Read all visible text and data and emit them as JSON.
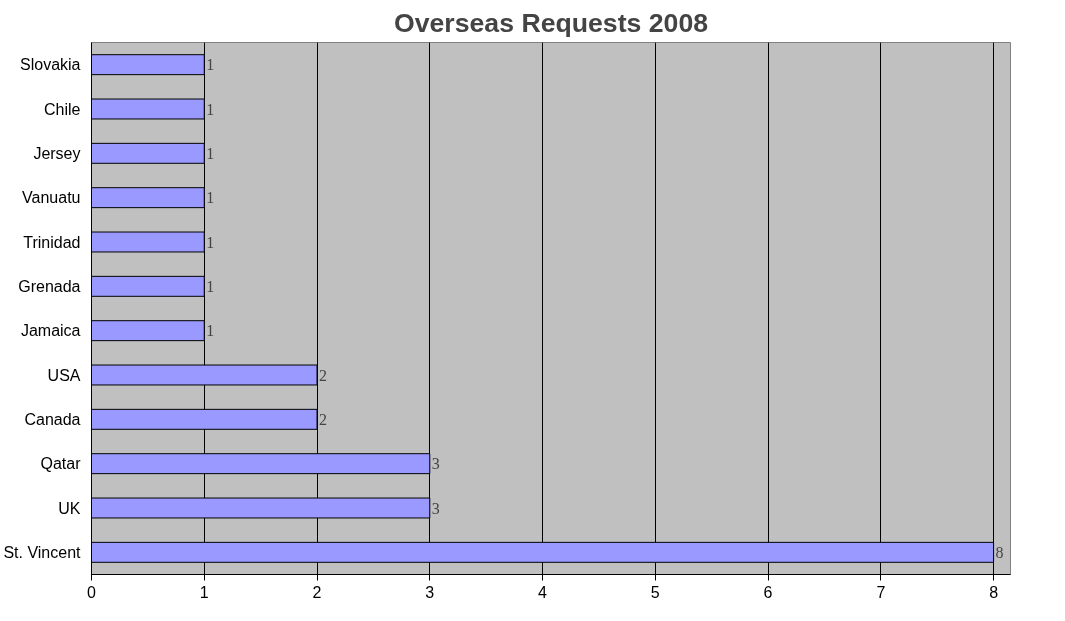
{
  "chart_data": {
    "type": "bar",
    "orientation": "horizontal",
    "title": "Overseas Requests 2008",
    "categories": [
      "Slovakia",
      "Chile",
      "Jersey",
      "Vanuatu",
      "Trinidad",
      "Grenada",
      "Jamaica",
      "USA",
      "Canada",
      "Qatar",
      "UK",
      "St. Vincent"
    ],
    "values": [
      1,
      1,
      1,
      1,
      1,
      1,
      1,
      2,
      2,
      3,
      3,
      8
    ],
    "color": "#9999ff",
    "xlim": [
      0,
      8.15
    ],
    "xticks": [
      0,
      1,
      2,
      3,
      4,
      5,
      6,
      7,
      8
    ],
    "grid": "x",
    "data_labels": true
  }
}
